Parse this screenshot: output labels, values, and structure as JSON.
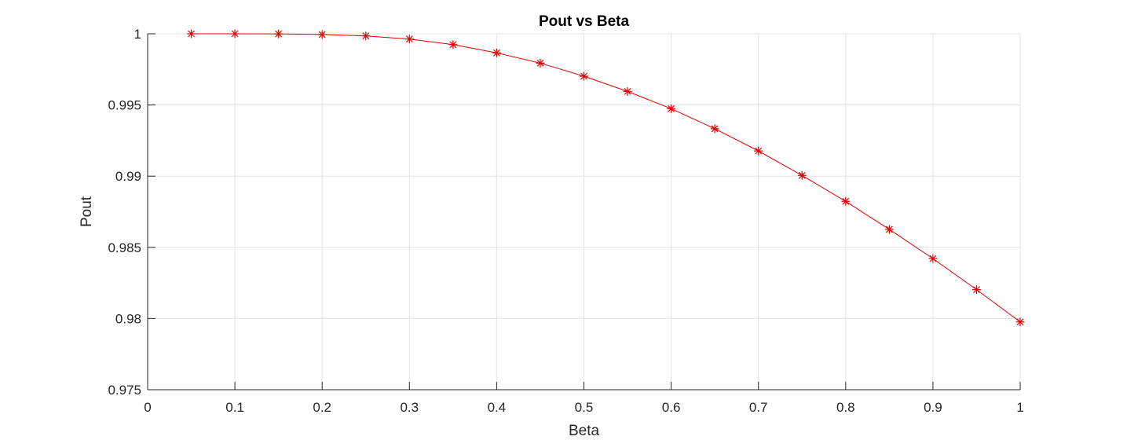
{
  "chart_data": {
    "type": "line",
    "title": "Pout vs Beta",
    "xlabel": "Beta",
    "ylabel": "Pout",
    "xlim": [
      0,
      1
    ],
    "ylim": [
      0.975,
      1
    ],
    "xticks": [
      0,
      0.1,
      0.2,
      0.3,
      0.4,
      0.5,
      0.6,
      0.7,
      0.8,
      0.9,
      1
    ],
    "xtick_labels": [
      "0",
      "0.1",
      "0.2",
      "0.3",
      "0.4",
      "0.5",
      "0.6",
      "0.7",
      "0.8",
      "0.9",
      "1"
    ],
    "yticks": [
      0.975,
      0.98,
      0.985,
      0.99,
      0.995,
      1
    ],
    "ytick_labels": [
      "0.975",
      "0.98",
      "0.985",
      "0.99",
      "0.995",
      "1"
    ],
    "grid": true,
    "marker": "asterisk",
    "series": [
      {
        "color": "#e00000",
        "x": [
          0.05,
          0.1,
          0.15,
          0.2,
          0.25,
          0.3,
          0.35,
          0.4,
          0.45,
          0.5,
          0.55,
          0.6,
          0.65,
          0.7,
          0.75,
          0.8,
          0.85,
          0.9,
          0.95,
          1.0
        ],
        "y": [
          1.0,
          1.0,
          0.99999,
          0.99995,
          0.99985,
          0.99963,
          0.99924,
          0.99866,
          0.99794,
          0.99702,
          0.99595,
          0.99474,
          0.99333,
          0.99177,
          0.99005,
          0.98823,
          0.98626,
          0.98421,
          0.98203,
          0.97976
        ]
      }
    ]
  }
}
